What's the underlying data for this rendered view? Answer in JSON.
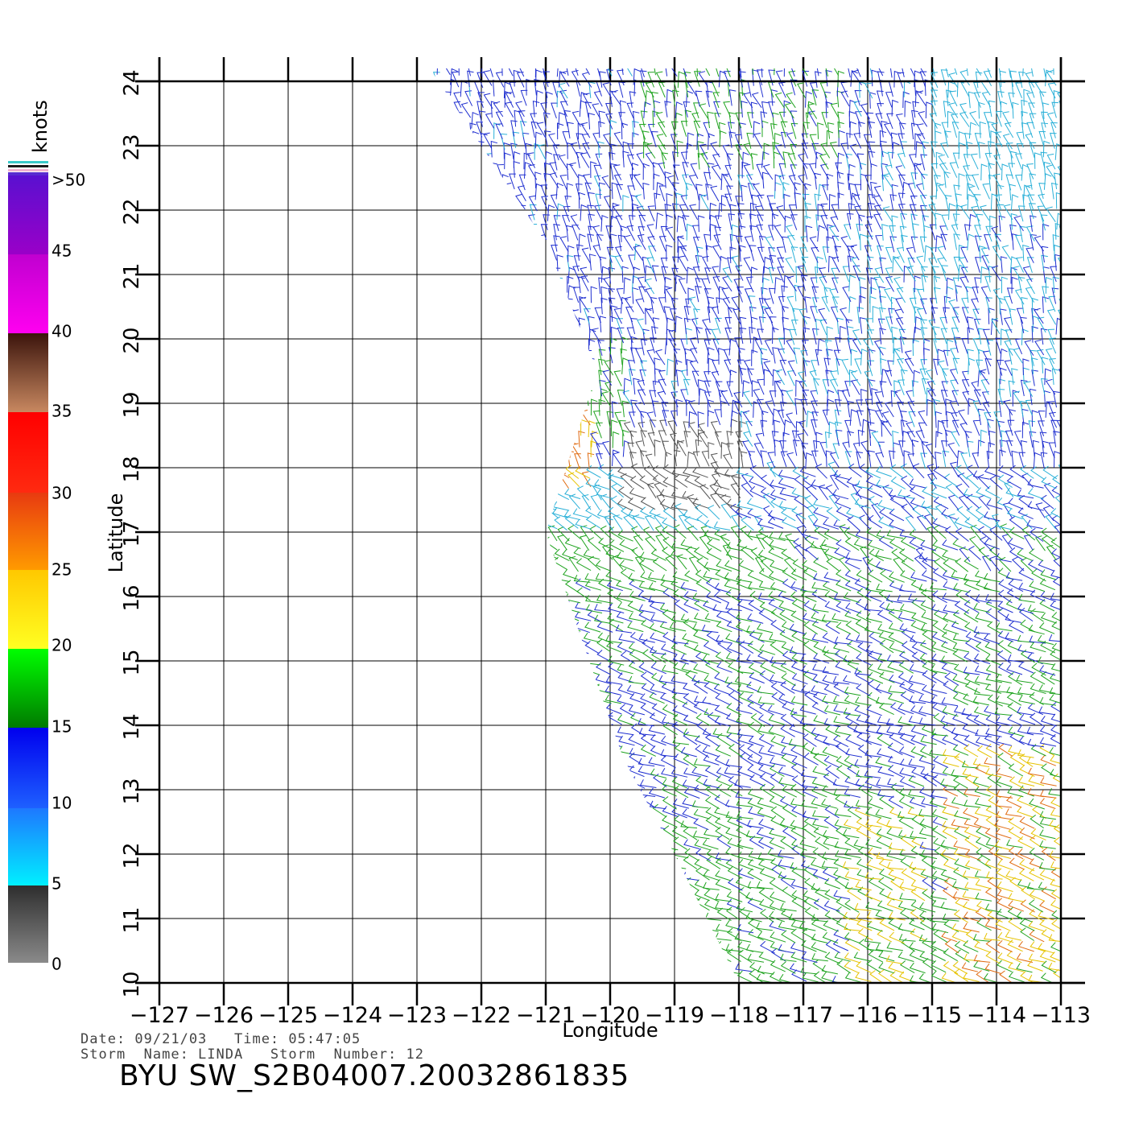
{
  "colorbar": {
    "unit_label": "knots",
    "labels": [
      ">50",
      "45",
      "40",
      "35",
      "30",
      "25",
      "20",
      "15",
      "10",
      "5",
      "0"
    ]
  },
  "axes": {
    "x_title": "Longitude",
    "y_title": "Latitude",
    "lon_ticks": [
      "−127",
      "−126",
      "−125",
      "−124",
      "−123",
      "−122",
      "−121",
      "−120",
      "−119",
      "−118",
      "−117",
      "−116",
      "−115",
      "−114",
      "−113"
    ],
    "lat_ticks": [
      "10",
      "11",
      "12",
      "13",
      "14",
      "15",
      "16",
      "17",
      "18",
      "19",
      "20",
      "21",
      "22",
      "23",
      "24"
    ]
  },
  "meta": {
    "date_line": "Date: 09/21/03   Time: 05:47:05",
    "storm_line": "Storm  Name: LINDA   Storm  Number: 12"
  },
  "footer_title": "BYU  SW_S2B04007.20032861835",
  "chart_data": {
    "type": "wind-barb map",
    "xlabel": "Longitude",
    "ylabel": "Latitude",
    "xlim": [
      -127,
      -113
    ],
    "ylim": [
      10,
      24
    ],
    "colorscale_unit": "knots",
    "colorscale_breaks": [
      0,
      5,
      10,
      15,
      20,
      25,
      30,
      35,
      40,
      45,
      50
    ],
    "colors": {
      "calm": "#555555",
      "light": "#2ab0d8",
      "moderate": "#1f2fd0",
      "fresh": "#1fa31f",
      "strong": "#e6c300",
      "gale": "#e06a10"
    },
    "swath": {
      "note": "scatterometer swath region; barbs drawn inside",
      "edge_lon_lat": [
        [
          -122.8,
          24.2
        ],
        [
          -121.0,
          21.5
        ],
        [
          -120.2,
          19.5
        ],
        [
          -121.0,
          17.0
        ],
        [
          -120.5,
          15.5
        ],
        [
          -119.8,
          13.5
        ],
        [
          -119.0,
          12.0
        ],
        [
          -118.0,
          10.0
        ],
        [
          -113.0,
          10.0
        ],
        [
          -113.0,
          24.2
        ]
      ]
    },
    "grid": true
  }
}
